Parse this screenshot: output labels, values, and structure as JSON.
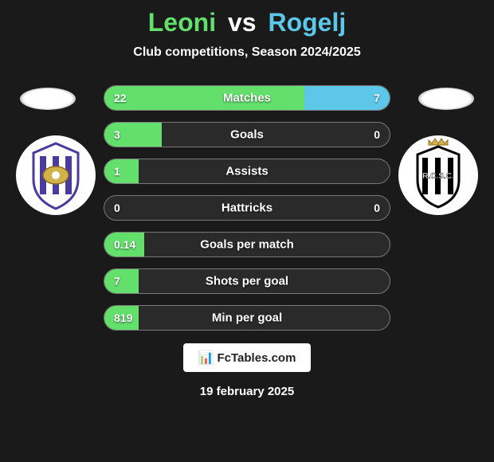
{
  "header": {
    "player1": "Leoni",
    "vs": "vs",
    "player2": "Rogelj",
    "subtitle": "Club competitions, Season 2024/2025"
  },
  "colors": {
    "p1": "#63e06c",
    "p2": "#5cc7e8",
    "bar_border": "#787878",
    "bar_bg": "#2a2a2a",
    "page_bg": "#1a1a1a"
  },
  "crests": {
    "left": {
      "name": "anderlecht-crest",
      "bg": "#ffffff",
      "accent": "#4b3b9e",
      "gold": "#d4b24a"
    },
    "right": {
      "name": "charleroi-crest",
      "bg": "#ffffff",
      "stripe": "#000000",
      "gold": "#d4b24a"
    }
  },
  "stats": [
    {
      "label": "Matches",
      "left_val": "22",
      "right_val": "7",
      "left_pct": 70,
      "right_pct": 30,
      "show_right": true
    },
    {
      "label": "Goals",
      "left_val": "3",
      "right_val": "0",
      "left_pct": 20,
      "right_pct": 0,
      "show_right": true
    },
    {
      "label": "Assists",
      "left_val": "1",
      "right_val": "",
      "left_pct": 12,
      "right_pct": 0,
      "show_right": false
    },
    {
      "label": "Hattricks",
      "left_val": "0",
      "right_val": "0",
      "left_pct": 0,
      "right_pct": 0,
      "show_right": true
    },
    {
      "label": "Goals per match",
      "left_val": "0.14",
      "right_val": "",
      "left_pct": 14,
      "right_pct": 0,
      "show_right": false
    },
    {
      "label": "Shots per goal",
      "left_val": "7",
      "right_val": "",
      "left_pct": 12,
      "right_pct": 0,
      "show_right": false
    },
    {
      "label": "Min per goal",
      "left_val": "819",
      "right_val": "",
      "left_pct": 12,
      "right_pct": 0,
      "show_right": false
    }
  ],
  "brand": {
    "mark": "📊",
    "text": "FcTables.com"
  },
  "date": "19 february 2025"
}
